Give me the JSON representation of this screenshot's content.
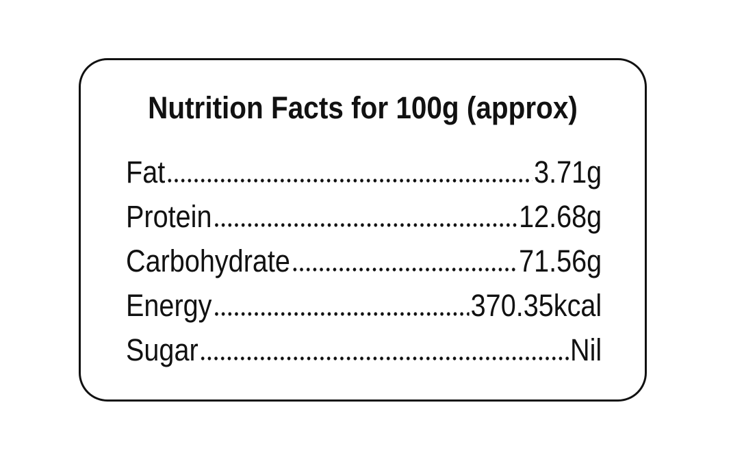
{
  "title": "Nutrition Facts for 100g (approx)",
  "rows": [
    {
      "label": "Fat",
      "value": "3.71g"
    },
    {
      "label": "Protein",
      "value": "12.68g"
    },
    {
      "label": "Carbohydrate",
      "value": "71.56g"
    },
    {
      "label": "Energy",
      "value": "370.35kcal"
    },
    {
      "label": "Sugar",
      "value": "Nil"
    }
  ]
}
